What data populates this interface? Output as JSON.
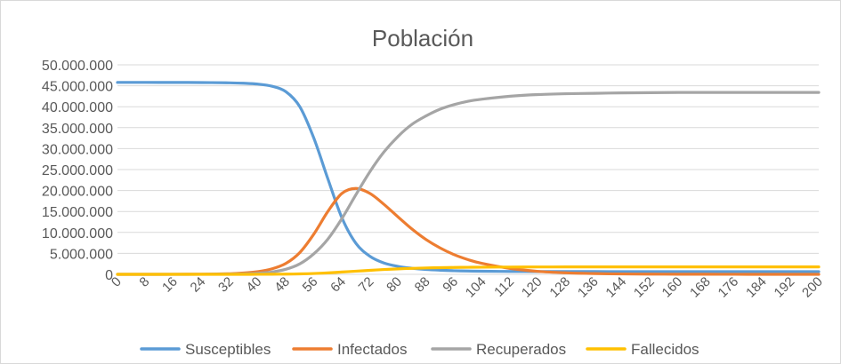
{
  "chart_data": {
    "type": "line",
    "title": "Población",
    "xlabel": "",
    "ylabel": "",
    "xlim": [
      0,
      200
    ],
    "ylim": [
      0,
      50000000
    ],
    "y_ticks": [
      "0",
      "5.000.000",
      "10.000.000",
      "15.000.000",
      "20.000.000",
      "25.000.000",
      "30.000.000",
      "35.000.000",
      "40.000.000",
      "45.000.000",
      "50.000.000"
    ],
    "x_ticks": [
      "0",
      "8",
      "16",
      "24",
      "32",
      "40",
      "48",
      "56",
      "64",
      "72",
      "80",
      "88",
      "96",
      "104",
      "112",
      "120",
      "128",
      "136",
      "144",
      "152",
      "160",
      "168",
      "176",
      "184",
      "192",
      "200"
    ],
    "grid": "horizontal",
    "legend_position": "bottom",
    "x": [
      0,
      8,
      16,
      24,
      32,
      36,
      40,
      44,
      48,
      52,
      56,
      60,
      64,
      68,
      72,
      76,
      80,
      84,
      88,
      92,
      96,
      100,
      104,
      112,
      120,
      128,
      136,
      144,
      152,
      160,
      168,
      176,
      184,
      192,
      200
    ],
    "series": [
      {
        "name": "Susceptibles",
        "color": "#5B9BD5",
        "values": [
          45800000,
          45800000,
          45790000,
          45770000,
          45700000,
          45600000,
          45400000,
          44900000,
          43600000,
          40000000,
          32500000,
          22800000,
          13500000,
          7400000,
          4300000,
          2700000,
          1900000,
          1450000,
          1150000,
          980000,
          860000,
          790000,
          740000,
          690000,
          670000,
          660000,
          655000,
          650000,
          650000,
          650000,
          650000,
          650000,
          650000,
          650000,
          650000
        ]
      },
      {
        "name": "Infectados",
        "color": "#ED7D31",
        "values": [
          0,
          0,
          10000,
          40000,
          150000,
          320000,
          650000,
          1300000,
          2600000,
          5200000,
          9600000,
          15000000,
          19300000,
          20500000,
          19300000,
          16700000,
          13700000,
          10800000,
          8300000,
          6300000,
          4700000,
          3500000,
          2600000,
          1400000,
          700000,
          360000,
          180000,
          90000,
          50000,
          30000,
          20000,
          10000,
          5000,
          0,
          0
        ]
      },
      {
        "name": "Recuperados",
        "color": "#A5A5A5",
        "values": [
          0,
          0,
          0,
          10000,
          50000,
          100000,
          250000,
          550000,
          1200000,
          2500000,
          4900000,
          8400000,
          13300000,
          19000000,
          24500000,
          29200000,
          32900000,
          35800000,
          37800000,
          39400000,
          40500000,
          41300000,
          41800000,
          42500000,
          42900000,
          43100000,
          43200000,
          43300000,
          43350000,
          43400000,
          43400000,
          43400000,
          43400000,
          43400000,
          43400000
        ]
      },
      {
        "name": "Fallecidos",
        "color": "#FFC000",
        "values": [
          0,
          0,
          0,
          0,
          0,
          5000,
          10000,
          25000,
          50000,
          100000,
          200000,
          350000,
          550000,
          750000,
          950000,
          1150000,
          1300000,
          1420000,
          1520000,
          1590000,
          1640000,
          1680000,
          1710000,
          1740000,
          1760000,
          1770000,
          1775000,
          1780000,
          1780000,
          1780000,
          1780000,
          1780000,
          1780000,
          1780000,
          1780000
        ]
      }
    ]
  }
}
